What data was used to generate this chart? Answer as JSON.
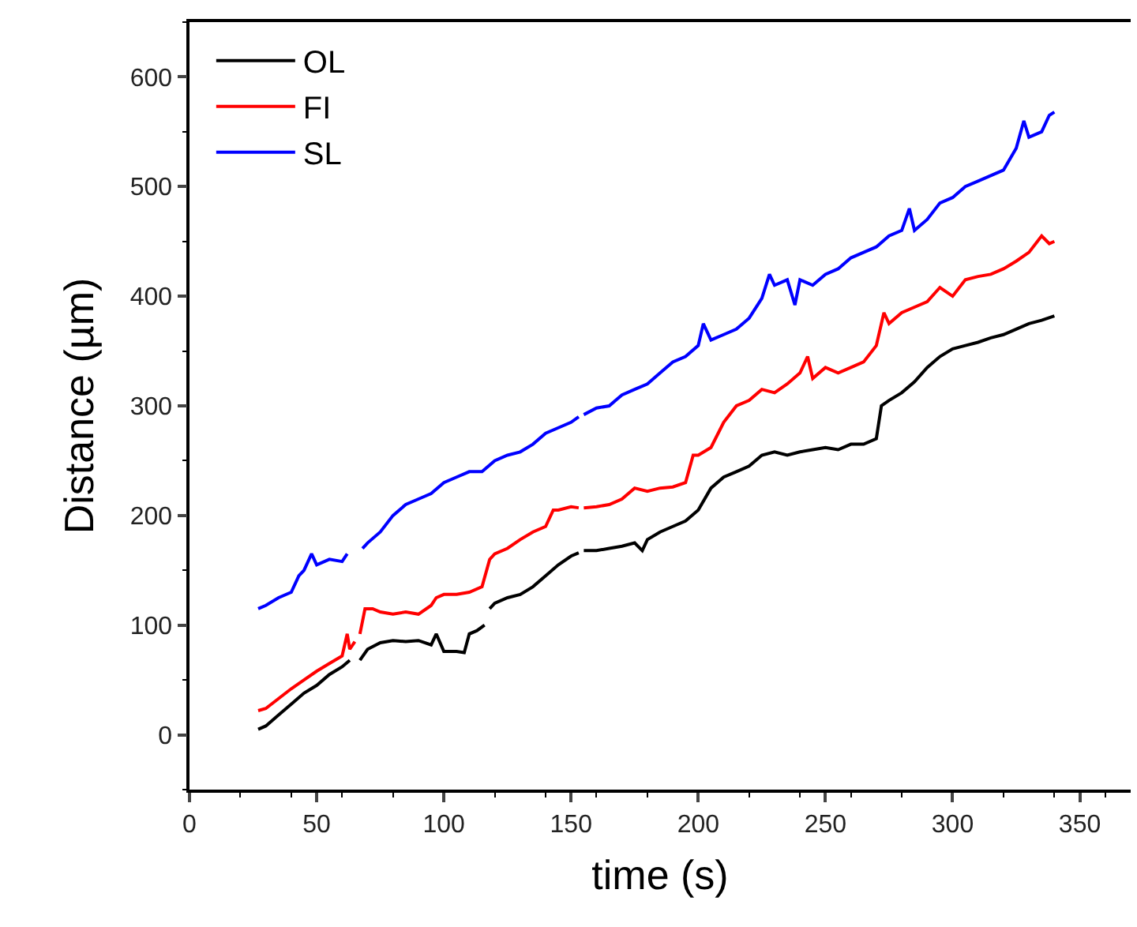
{
  "chart_data": {
    "type": "line",
    "xlabel": "time (s)",
    "ylabel": "Distance (µm)",
    "xlim": [
      0,
      370
    ],
    "xticks": [
      0,
      50,
      100,
      150,
      200,
      250,
      300,
      350
    ],
    "ylim": [
      -50,
      650
    ],
    "yticks": [
      0,
      100,
      200,
      300,
      400,
      500,
      600
    ],
    "grid": false,
    "legend": "top left",
    "line_style": "solid",
    "marker": "none",
    "series": [
      {
        "name": "OL",
        "color": "#000000",
        "x": [
          27,
          30,
          35,
          40,
          45,
          50,
          55,
          60,
          63,
          65,
          67,
          70,
          75,
          80,
          85,
          90,
          95,
          97,
          100,
          105,
          108,
          110,
          113,
          116,
          117,
          118,
          120,
          125,
          130,
          135,
          140,
          145,
          150,
          153,
          154,
          155,
          160,
          165,
          170,
          175,
          178,
          180,
          185,
          190,
          195,
          200,
          205,
          210,
          215,
          220,
          225,
          230,
          235,
          240,
          245,
          250,
          255,
          260,
          265,
          270,
          272,
          275,
          280,
          285,
          290,
          295,
          300,
          305,
          310,
          315,
          320,
          325,
          330,
          335,
          340
        ],
        "values": [
          5,
          8,
          18,
          28,
          38,
          45,
          55,
          62,
          68,
          null,
          68,
          78,
          84,
          86,
          85,
          86,
          82,
          92,
          76,
          76,
          75,
          92,
          95,
          100,
          null,
          115,
          120,
          125,
          128,
          135,
          145,
          155,
          163,
          166,
          null,
          168,
          168,
          170,
          172,
          175,
          168,
          178,
          185,
          190,
          195,
          205,
          225,
          235,
          240,
          245,
          255,
          258,
          255,
          258,
          260,
          262,
          260,
          265,
          265,
          270,
          300,
          305,
          312,
          322,
          335,
          345,
          352,
          355,
          358,
          362,
          365,
          370,
          375,
          378,
          382
        ]
      },
      {
        "name": "FI",
        "color": "#ff0000",
        "x": [
          27,
          30,
          35,
          40,
          45,
          50,
          55,
          60,
          62,
          63,
          65,
          66,
          67,
          69,
          72,
          75,
          80,
          85,
          90,
          95,
          97,
          100,
          105,
          110,
          115,
          118,
          120,
          125,
          130,
          135,
          140,
          143,
          145,
          150,
          153,
          154,
          155,
          160,
          165,
          170,
          175,
          180,
          185,
          190,
          195,
          198,
          200,
          205,
          210,
          215,
          220,
          225,
          230,
          235,
          240,
          243,
          245,
          250,
          255,
          260,
          265,
          270,
          273,
          275,
          280,
          285,
          290,
          295,
          300,
          305,
          310,
          315,
          320,
          325,
          330,
          335,
          338,
          340
        ],
        "values": [
          22,
          24,
          33,
          42,
          50,
          58,
          65,
          72,
          92,
          78,
          85,
          null,
          92,
          115,
          115,
          112,
          110,
          112,
          110,
          118,
          125,
          128,
          128,
          130,
          135,
          160,
          165,
          170,
          178,
          185,
          190,
          205,
          205,
          208,
          207,
          null,
          207,
          208,
          210,
          215,
          225,
          222,
          225,
          226,
          230,
          255,
          255,
          262,
          285,
          300,
          305,
          315,
          312,
          320,
          330,
          345,
          325,
          335,
          330,
          335,
          340,
          355,
          385,
          375,
          385,
          390,
          395,
          408,
          400,
          415,
          418,
          420,
          425,
          432,
          440,
          455,
          448,
          450
        ]
      },
      {
        "name": "SL",
        "color": "#0000ff",
        "x": [
          27,
          30,
          35,
          40,
          43,
          45,
          48,
          50,
          55,
          60,
          62,
          65,
          68,
          70,
          75,
          80,
          85,
          90,
          95,
          100,
          105,
          110,
          115,
          120,
          125,
          130,
          135,
          140,
          145,
          150,
          153,
          154,
          155,
          160,
          165,
          170,
          175,
          180,
          185,
          190,
          195,
          200,
          202,
          205,
          210,
          215,
          220,
          225,
          228,
          230,
          235,
          238,
          240,
          245,
          250,
          255,
          260,
          265,
          270,
          275,
          280,
          283,
          285,
          290,
          295,
          300,
          305,
          310,
          315,
          320,
          325,
          328,
          330,
          335,
          338,
          340
        ],
        "values": [
          115,
          118,
          125,
          130,
          145,
          150,
          165,
          155,
          160,
          158,
          165,
          null,
          170,
          175,
          185,
          200,
          210,
          215,
          220,
          230,
          235,
          240,
          240,
          250,
          255,
          258,
          265,
          275,
          280,
          285,
          290,
          null,
          292,
          298,
          300,
          310,
          315,
          320,
          330,
          340,
          345,
          355,
          375,
          360,
          365,
          370,
          380,
          398,
          420,
          410,
          415,
          392,
          415,
          410,
          420,
          425,
          435,
          440,
          445,
          455,
          460,
          480,
          460,
          470,
          485,
          490,
          500,
          505,
          510,
          515,
          535,
          560,
          545,
          550,
          565,
          568
        ]
      }
    ]
  }
}
